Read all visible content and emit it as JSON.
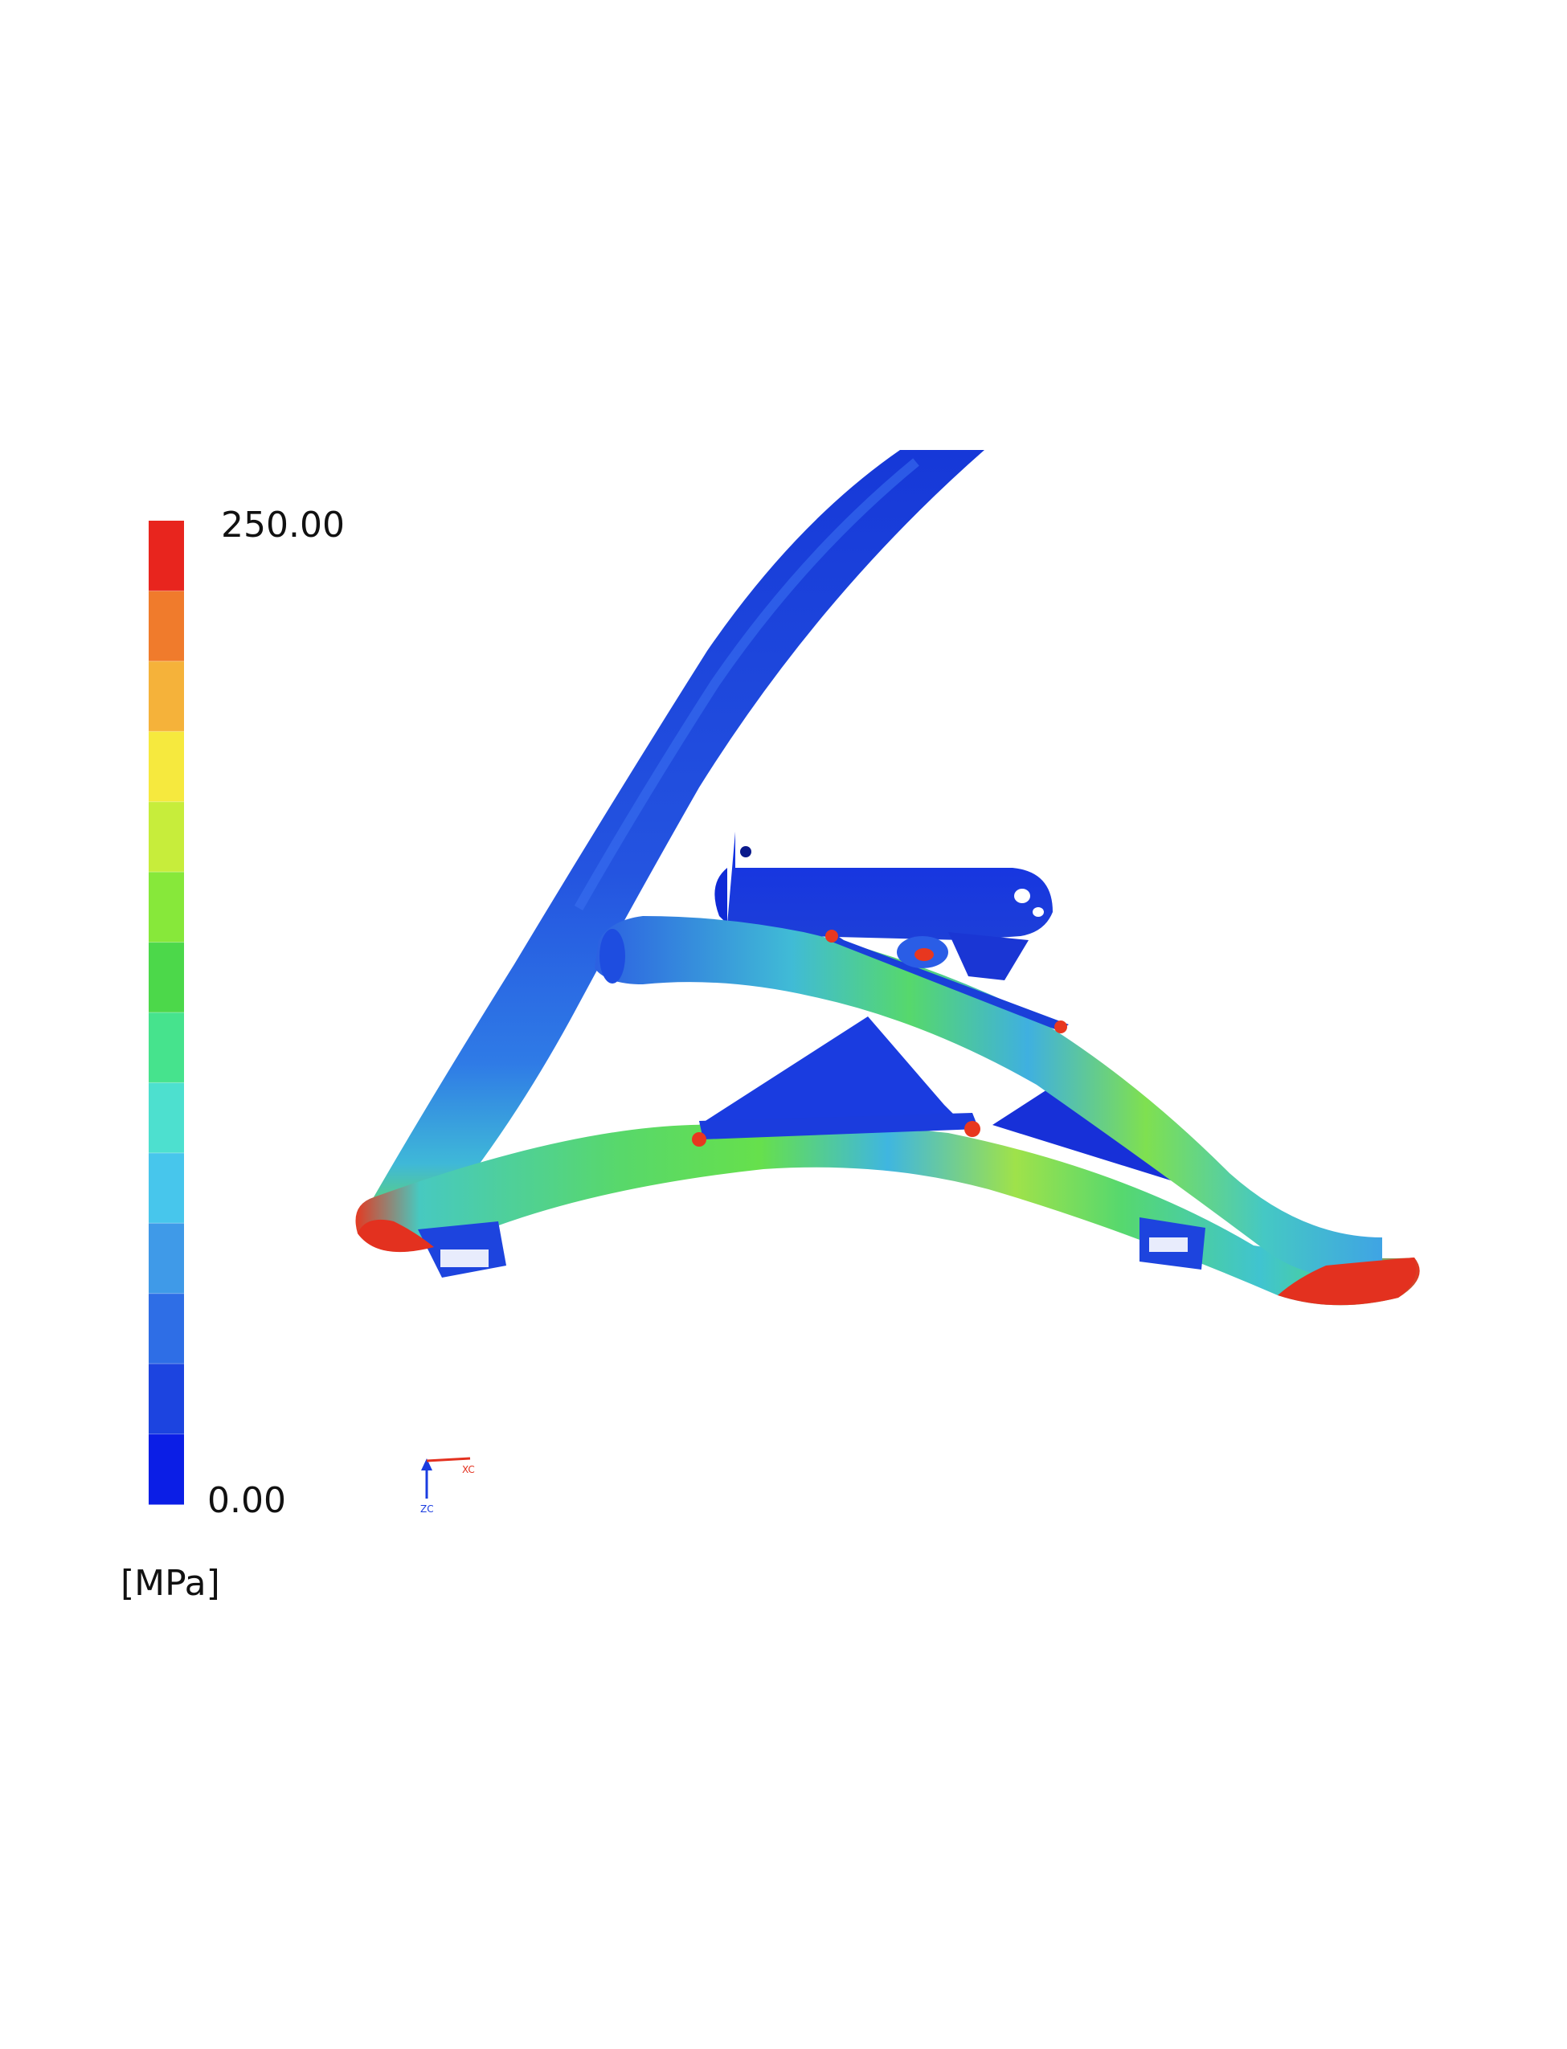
{
  "legend": {
    "max_label": "250.00",
    "min_label": "0.00",
    "unit": "[MPa]",
    "band_colors": [
      "#e8251e",
      "#f07b2c",
      "#f5b23a",
      "#f6e93e",
      "#c7ed3b",
      "#87e83a",
      "#4cd84a",
      "#46e38d",
      "#4de0cf",
      "#47c6ec",
      "#3f9ae8",
      "#2e6ee6",
      "#1c44e0",
      "#0b1ee6"
    ]
  },
  "triad": {
    "x_label": "XC",
    "z_label": "ZC"
  }
}
